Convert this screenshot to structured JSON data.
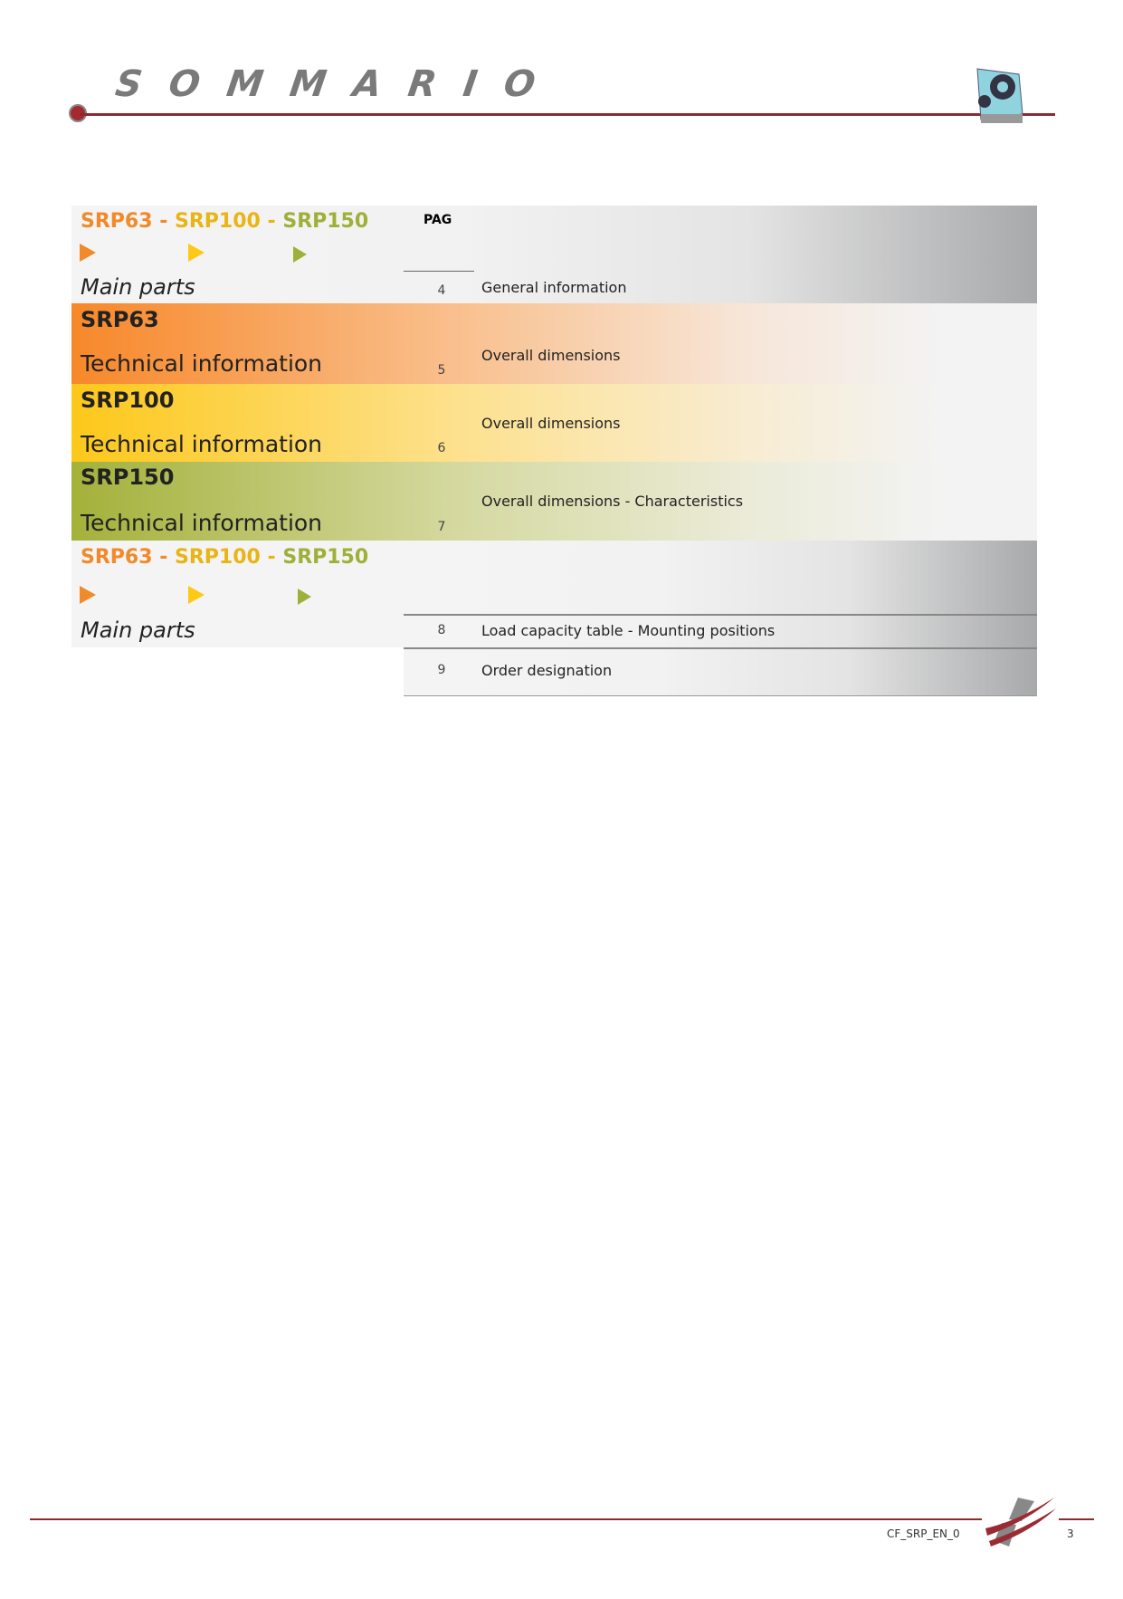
{
  "header": {
    "title": "SOMMARIO"
  },
  "toc": {
    "pag_label": "PAG",
    "series": [
      "SRP63",
      "SRP100",
      "SRP150"
    ],
    "separator": "-",
    "main_parts": "Main parts",
    "technical_information": "Technical information",
    "entries": [
      {
        "page": "4",
        "title": "General information"
      },
      {
        "page": "5",
        "title": "Overall dimensions"
      },
      {
        "page": "6",
        "title": "Overall dimensions"
      },
      {
        "page": "7",
        "title": "Overall dimensions - Characteristics"
      },
      {
        "page": "8",
        "title": "Load capacity table - Mounting positions"
      },
      {
        "page": "9",
        "title": "Order designation"
      }
    ]
  },
  "colors": {
    "srp63": "#f08a2a",
    "srp100": "#fcc916",
    "srp150": "#9fb03a",
    "rule": "#8b2a33"
  },
  "footer": {
    "code": "CF_SRP_EN_0",
    "page": "3"
  }
}
